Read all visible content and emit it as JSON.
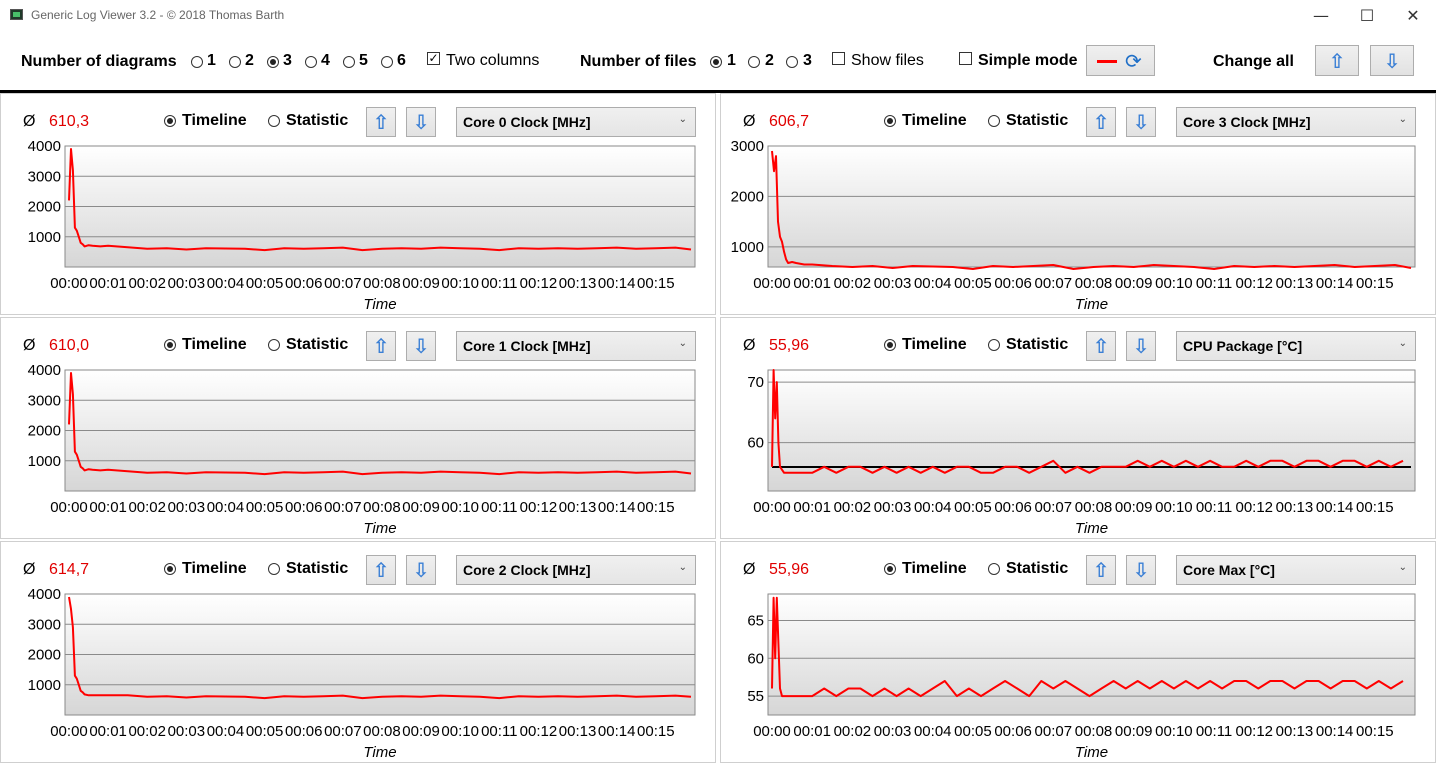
{
  "window": {
    "title": "Generic Log Viewer 3.2 - © 2018 Thomas Barth",
    "minimize": "—",
    "maximize": "☐",
    "close": "✕"
  },
  "toolbar": {
    "diagrams_label": "Number of diagrams",
    "diagram_options": [
      "1",
      "2",
      "3",
      "4",
      "5",
      "6"
    ],
    "diagram_selected": "3",
    "two_columns_label": "Two columns",
    "two_columns_checked": true,
    "files_label": "Number of files",
    "file_options": [
      "1",
      "2",
      "3"
    ],
    "file_selected": "1",
    "show_files_label": "Show files",
    "show_files_checked": false,
    "simple_mode_label": "Simple mode",
    "simple_mode_checked": false,
    "change_all_label": "Change all"
  },
  "colors": {
    "series": "#ff0000",
    "average_text": "#e00000",
    "average_line": "#000000",
    "arrow": "#3a7fd5"
  },
  "panels": [
    {
      "avg_symbol": "Ø",
      "avg_value": "610,3",
      "timeline_label": "Timeline",
      "statistic_label": "Statistic",
      "mode": "Timeline",
      "sensor": "Core 0 Clock [MHz]",
      "xlabel": "Time"
    },
    {
      "avg_symbol": "Ø",
      "avg_value": "606,7",
      "timeline_label": "Timeline",
      "statistic_label": "Statistic",
      "mode": "Timeline",
      "sensor": "Core 3 Clock [MHz]",
      "xlabel": "Time"
    },
    {
      "avg_symbol": "Ø",
      "avg_value": "610,0",
      "timeline_label": "Timeline",
      "statistic_label": "Statistic",
      "mode": "Timeline",
      "sensor": "Core 1 Clock [MHz]",
      "xlabel": "Time"
    },
    {
      "avg_symbol": "Ø",
      "avg_value": "55,96",
      "timeline_label": "Timeline",
      "statistic_label": "Statistic",
      "mode": "Timeline",
      "sensor": "CPU Package [°C]",
      "xlabel": "Time"
    },
    {
      "avg_symbol": "Ø",
      "avg_value": "614,7",
      "timeline_label": "Timeline",
      "statistic_label": "Statistic",
      "mode": "Timeline",
      "sensor": "Core 2 Clock [MHz]",
      "xlabel": "Time"
    },
    {
      "avg_symbol": "Ø",
      "avg_value": "55,96",
      "timeline_label": "Timeline",
      "statistic_label": "Statistic",
      "mode": "Timeline",
      "sensor": "Core Max [°C]",
      "xlabel": "Time"
    }
  ],
  "chart_data": [
    {
      "type": "line",
      "title": "",
      "xlabel": "Time",
      "ylabel": "",
      "x_ticks": [
        "00:00",
        "00:01",
        "00:02",
        "00:03",
        "00:04",
        "00:05",
        "00:06",
        "00:07",
        "00:08",
        "00:09",
        "00:10",
        "00:11",
        "00:12",
        "00:13",
        "00:14",
        "00:15"
      ],
      "y_ticks": [
        1000,
        2000,
        3000,
        4000
      ],
      "ylim": [
        0,
        4000
      ],
      "xlim_minutes": [
        0,
        15.9
      ],
      "grid": true,
      "series": [
        {
          "x_minutes": [
            0,
            0.05,
            0.1,
            0.15,
            0.2,
            0.25,
            0.3,
            0.35,
            0.4,
            0.5,
            0.6,
            0.8,
            1.0,
            1.5,
            2.0,
            2.5,
            3.0,
            3.5,
            4.0,
            4.5,
            5.0,
            5.5,
            6.0,
            6.5,
            7.0,
            7.5,
            8.0,
            8.5,
            9.0,
            9.5,
            10.0,
            10.5,
            11.0,
            11.5,
            12.0,
            12.5,
            13.0,
            13.5,
            14.0,
            14.5,
            15.0,
            15.5,
            15.9
          ],
          "values": [
            2200,
            3900,
            3200,
            1300,
            1200,
            1000,
            800,
            750,
            680,
            720,
            700,
            680,
            700,
            650,
            600,
            620,
            580,
            620,
            610,
            600,
            560,
            620,
            600,
            620,
            640,
            560,
            600,
            620,
            600,
            640,
            620,
            600,
            560,
            620,
            600,
            620,
            600,
            620,
            640,
            600,
            620,
            640,
            580
          ]
        }
      ]
    },
    {
      "type": "line",
      "title": "",
      "xlabel": "Time",
      "ylabel": "",
      "x_ticks": [
        "00:00",
        "00:01",
        "00:02",
        "00:03",
        "00:04",
        "00:05",
        "00:06",
        "00:07",
        "00:08",
        "00:09",
        "00:10",
        "00:11",
        "00:12",
        "00:13",
        "00:14",
        "00:15"
      ],
      "y_ticks": [
        1000,
        2000,
        3000
      ],
      "ylim": [
        600,
        3000
      ],
      "xlim_minutes": [
        0,
        15.9
      ],
      "grid": true,
      "series": [
        {
          "x_minutes": [
            0,
            0.05,
            0.1,
            0.15,
            0.2,
            0.25,
            0.3,
            0.35,
            0.4,
            0.5,
            0.6,
            0.8,
            1.0,
            1.5,
            2.0,
            2.5,
            3.0,
            3.5,
            4.0,
            4.5,
            5.0,
            5.5,
            6.0,
            6.5,
            7.0,
            7.5,
            8.0,
            8.5,
            9.0,
            9.5,
            10.0,
            10.5,
            11.0,
            11.5,
            12.0,
            12.5,
            13.0,
            13.5,
            14.0,
            14.5,
            15.0,
            15.5,
            15.9
          ],
          "values": [
            2900,
            2500,
            2800,
            1500,
            1200,
            1100,
            900,
            750,
            680,
            700,
            680,
            650,
            650,
            620,
            600,
            620,
            580,
            620,
            610,
            600,
            560,
            620,
            600,
            620,
            640,
            560,
            600,
            620,
            600,
            640,
            620,
            600,
            560,
            620,
            600,
            620,
            600,
            620,
            640,
            600,
            620,
            640,
            580
          ]
        }
      ]
    },
    {
      "type": "line",
      "title": "",
      "xlabel": "Time",
      "ylabel": "",
      "x_ticks": [
        "00:00",
        "00:01",
        "00:02",
        "00:03",
        "00:04",
        "00:05",
        "00:06",
        "00:07",
        "00:08",
        "00:09",
        "00:10",
        "00:11",
        "00:12",
        "00:13",
        "00:14",
        "00:15"
      ],
      "y_ticks": [
        1000,
        2000,
        3000,
        4000
      ],
      "ylim": [
        0,
        4000
      ],
      "xlim_minutes": [
        0,
        15.9
      ],
      "grid": true,
      "series": [
        {
          "x_minutes": [
            0,
            0.05,
            0.1,
            0.15,
            0.2,
            0.25,
            0.3,
            0.35,
            0.4,
            0.5,
            0.6,
            0.8,
            1.0,
            1.5,
            2.0,
            2.5,
            3.0,
            3.5,
            4.0,
            4.5,
            5.0,
            5.5,
            6.0,
            6.5,
            7.0,
            7.5,
            8.0,
            8.5,
            9.0,
            9.5,
            10.0,
            10.5,
            11.0,
            11.5,
            12.0,
            12.5,
            13.0,
            13.5,
            14.0,
            14.5,
            15.0,
            15.5,
            15.9
          ],
          "values": [
            2200,
            3900,
            3200,
            1300,
            1200,
            1000,
            800,
            750,
            680,
            720,
            700,
            680,
            700,
            650,
            600,
            620,
            580,
            620,
            610,
            600,
            560,
            620,
            600,
            620,
            640,
            560,
            600,
            620,
            600,
            640,
            620,
            600,
            560,
            620,
            600,
            620,
            600,
            620,
            640,
            600,
            620,
            640,
            580
          ]
        }
      ]
    },
    {
      "type": "line",
      "title": "",
      "xlabel": "Time",
      "ylabel": "",
      "x_ticks": [
        "00:00",
        "00:01",
        "00:02",
        "00:03",
        "00:04",
        "00:05",
        "00:06",
        "00:07",
        "00:08",
        "00:09",
        "00:10",
        "00:11",
        "00:12",
        "00:13",
        "00:14",
        "00:15"
      ],
      "y_ticks": [
        60,
        70
      ],
      "ylim": [
        52,
        72
      ],
      "xlim_minutes": [
        0,
        15.9
      ],
      "grid": true,
      "average": 55.96,
      "series": [
        {
          "x_minutes": [
            0,
            0.04,
            0.08,
            0.12,
            0.16,
            0.2,
            0.3,
            0.5,
            0.7,
            1.0,
            1.3,
            1.6,
            1.9,
            2.2,
            2.5,
            2.8,
            3.1,
            3.4,
            3.7,
            4.0,
            4.3,
            4.6,
            4.9,
            5.2,
            5.5,
            5.8,
            6.1,
            6.4,
            6.7,
            7.0,
            7.3,
            7.6,
            7.9,
            8.2,
            8.5,
            8.8,
            9.1,
            9.4,
            9.7,
            10.0,
            10.3,
            10.6,
            10.9,
            11.2,
            11.5,
            11.8,
            12.1,
            12.4,
            12.7,
            13.0,
            13.3,
            13.6,
            13.9,
            14.2,
            14.5,
            14.8,
            15.1,
            15.4,
            15.7
          ],
          "values": [
            56,
            72,
            64,
            70,
            60,
            56,
            55,
            55,
            55,
            55,
            56,
            55,
            56,
            56,
            55,
            56,
            55,
            56,
            55,
            56,
            55,
            56,
            56,
            55,
            55,
            56,
            56,
            55,
            56,
            57,
            55,
            56,
            55,
            56,
            56,
            56,
            57,
            56,
            57,
            56,
            57,
            56,
            57,
            56,
            56,
            57,
            56,
            57,
            57,
            56,
            57,
            57,
            56,
            57,
            57,
            56,
            57,
            56,
            57
          ]
        }
      ]
    },
    {
      "type": "line",
      "title": "",
      "xlabel": "Time",
      "ylabel": "",
      "x_ticks": [
        "00:00",
        "00:01",
        "00:02",
        "00:03",
        "00:04",
        "00:05",
        "00:06",
        "00:07",
        "00:08",
        "00:09",
        "00:10",
        "00:11",
        "00:12",
        "00:13",
        "00:14",
        "00:15"
      ],
      "y_ticks": [
        1000,
        2000,
        3000,
        4000
      ],
      "ylim": [
        0,
        4000
      ],
      "xlim_minutes": [
        0,
        15.9
      ],
      "grid": true,
      "series": [
        {
          "x_minutes": [
            0,
            0.05,
            0.1,
            0.15,
            0.2,
            0.25,
            0.3,
            0.35,
            0.4,
            0.5,
            0.6,
            0.8,
            1.0,
            1.5,
            2.0,
            2.5,
            3.0,
            3.5,
            4.0,
            4.5,
            5.0,
            5.5,
            6.0,
            6.5,
            7.0,
            7.5,
            8.0,
            8.5,
            9.0,
            9.5,
            10.0,
            10.5,
            11.0,
            11.5,
            12.0,
            12.5,
            13.0,
            13.5,
            14.0,
            14.5,
            15.0,
            15.5,
            15.9
          ],
          "values": [
            3900,
            3500,
            2900,
            1300,
            1200,
            1000,
            800,
            750,
            680,
            650,
            650,
            650,
            650,
            650,
            600,
            620,
            580,
            620,
            610,
            600,
            560,
            620,
            600,
            620,
            640,
            560,
            600,
            620,
            600,
            640,
            620,
            600,
            560,
            620,
            600,
            620,
            600,
            620,
            640,
            600,
            620,
            640,
            600
          ]
        }
      ]
    },
    {
      "type": "line",
      "title": "",
      "xlabel": "Time",
      "ylabel": "",
      "x_ticks": [
        "00:00",
        "00:01",
        "00:02",
        "00:03",
        "00:04",
        "00:05",
        "00:06",
        "00:07",
        "00:08",
        "00:09",
        "00:10",
        "00:11",
        "00:12",
        "00:13",
        "00:14",
        "00:15"
      ],
      "y_ticks": [
        55,
        60,
        65
      ],
      "ylim": [
        52.5,
        68.5
      ],
      "xlim_minutes": [
        0,
        15.9
      ],
      "grid": true,
      "series": [
        {
          "x_minutes": [
            0,
            0.04,
            0.08,
            0.12,
            0.16,
            0.2,
            0.25,
            0.3,
            0.5,
            0.7,
            1.0,
            1.3,
            1.6,
            1.9,
            2.2,
            2.5,
            2.8,
            3.1,
            3.4,
            3.7,
            4.0,
            4.3,
            4.6,
            4.9,
            5.2,
            5.5,
            5.8,
            6.1,
            6.4,
            6.7,
            7.0,
            7.3,
            7.6,
            7.9,
            8.2,
            8.5,
            8.8,
            9.1,
            9.4,
            9.7,
            10.0,
            10.3,
            10.6,
            10.9,
            11.2,
            11.5,
            11.8,
            12.1,
            12.4,
            12.7,
            13.0,
            13.3,
            13.6,
            13.9,
            14.2,
            14.5,
            14.8,
            15.1,
            15.4,
            15.7
          ],
          "values": [
            56,
            68,
            60,
            68,
            62,
            56,
            55,
            55,
            55,
            55,
            55,
            56,
            55,
            56,
            56,
            55,
            56,
            55,
            56,
            55,
            56,
            57,
            55,
            56,
            55,
            56,
            57,
            56,
            55,
            57,
            56,
            57,
            56,
            55,
            56,
            57,
            56,
            57,
            56,
            57,
            56,
            57,
            56,
            57,
            56,
            57,
            57,
            56,
            57,
            57,
            56,
            57,
            57,
            56,
            57,
            57,
            56,
            57,
            56,
            57
          ]
        }
      ]
    }
  ]
}
